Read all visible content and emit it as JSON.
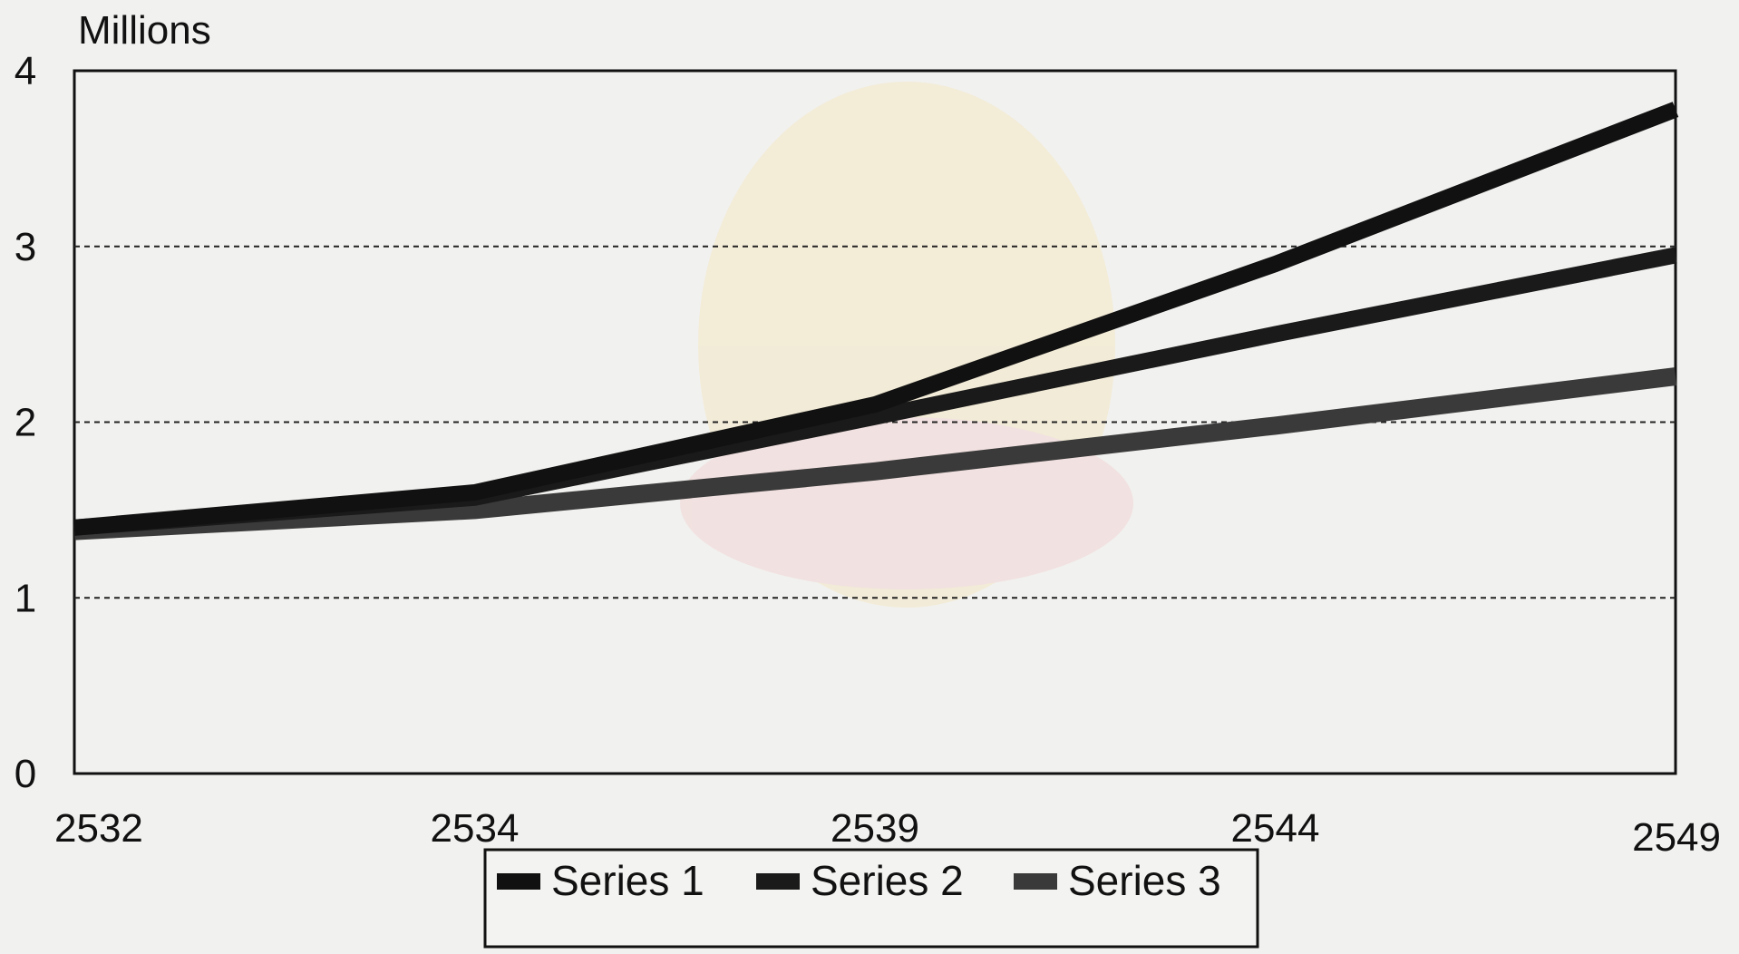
{
  "chart_data": {
    "type": "line",
    "title": "",
    "ylabel": "Millions",
    "xlabel": "",
    "categories": [
      "2532",
      "2534",
      "2539",
      "2544",
      "2549"
    ],
    "ylim": [
      0,
      4
    ],
    "yticks": [
      "0",
      "1",
      "2",
      "3",
      "4"
    ],
    "grid": "horizontal dashed at 1, 2, 3",
    "legend_position": "bottom-center",
    "series": [
      {
        "name": "Series 1",
        "values": [
          1.4,
          1.6,
          2.1,
          2.9,
          3.78
        ],
        "color": "#111111"
      },
      {
        "name": "Series 2",
        "values": [
          1.4,
          1.57,
          2.03,
          2.5,
          2.95
        ],
        "color": "#1a1a1a"
      },
      {
        "name": "Series 3",
        "values": [
          1.38,
          1.5,
          1.72,
          1.98,
          2.26
        ],
        "color": "#3a3a3a"
      }
    ]
  },
  "colors": {
    "background": "#f1f1ef",
    "plot_background": "#f3f3f1",
    "text": "#111111",
    "watermark": "#f2d38a"
  }
}
